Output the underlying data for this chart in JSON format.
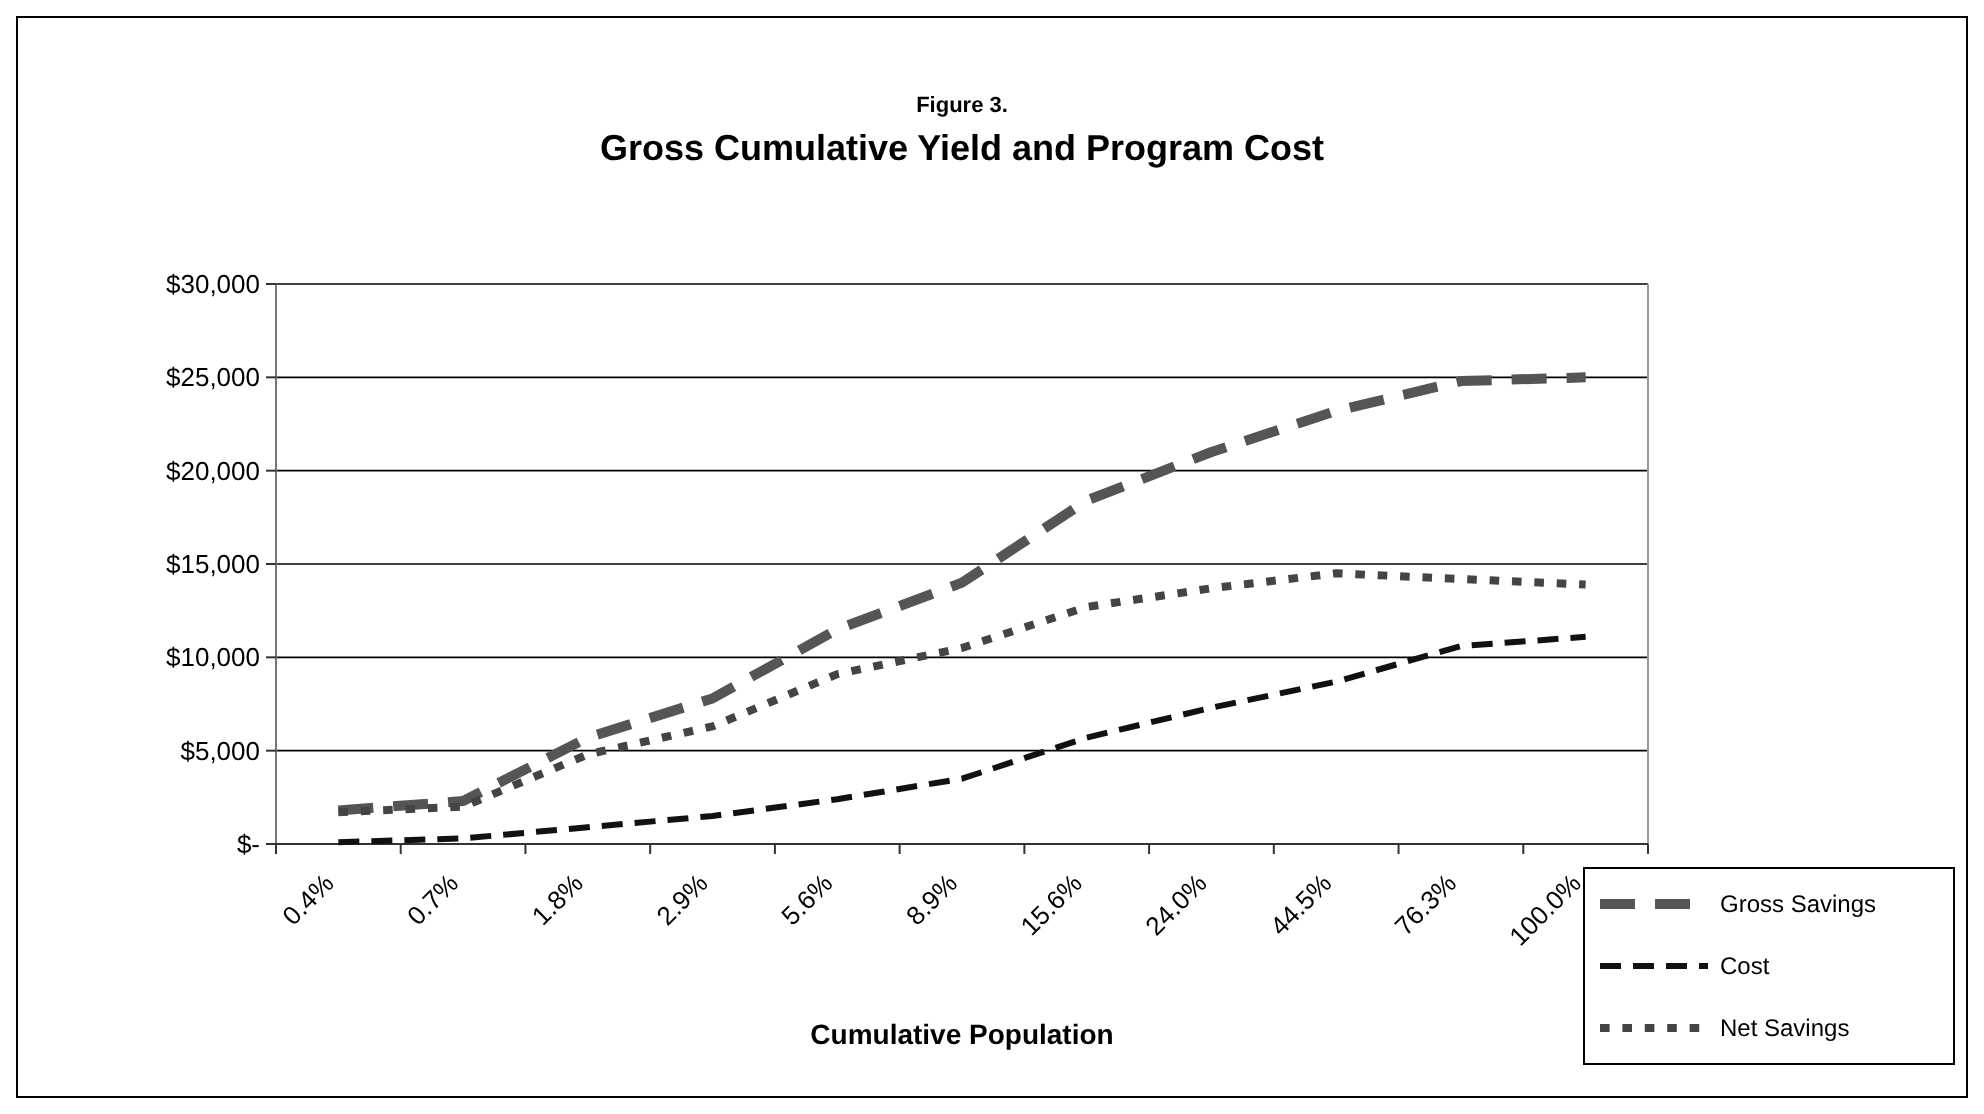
{
  "chart_data": {
    "type": "line",
    "title": "Gross Cumulative Yield and Program Cost",
    "subtitle": "Figure 3.",
    "xlabel": "Cumulative Population",
    "categories": [
      "0.4%",
      "0.7%",
      "1.8%",
      "2.9%",
      "5.6%",
      "8.9%",
      "15.6%",
      "24.0%",
      "44.5%",
      "76.3%",
      "100.0%"
    ],
    "series": [
      {
        "name": "Gross Savings",
        "color": "#555555",
        "line_style": "dashed",
        "values": [
          1800,
          2300,
          5700,
          7800,
          11500,
          14000,
          18400,
          21000,
          23200,
          24800,
          25000
        ]
      },
      {
        "name": "Cost",
        "color": "#111111",
        "line_style": "dashed",
        "values": [
          100,
          300,
          900,
          1500,
          2400,
          3500,
          5700,
          7300,
          8700,
          10600,
          11100
        ]
      },
      {
        "name": "Net Savings",
        "color": "#444444",
        "line_style": "dotted",
        "values": [
          1700,
          2000,
          4800,
          6300,
          9100,
          10500,
          12700,
          13700,
          14500,
          14200,
          13900
        ]
      }
    ],
    "ylim": [
      0,
      30000
    ],
    "yticks": [
      {
        "value": 0,
        "label": "$-"
      },
      {
        "value": 5000,
        "label": "$5,000"
      },
      {
        "value": 10000,
        "label": "$10,000"
      },
      {
        "value": 15000,
        "label": "$15,000"
      },
      {
        "value": 20000,
        "label": "$20,000"
      },
      {
        "value": 25000,
        "label": "$25,000"
      },
      {
        "value": 30000,
        "label": "$30,000"
      }
    ],
    "grid": "y",
    "legend": "bottom right"
  }
}
